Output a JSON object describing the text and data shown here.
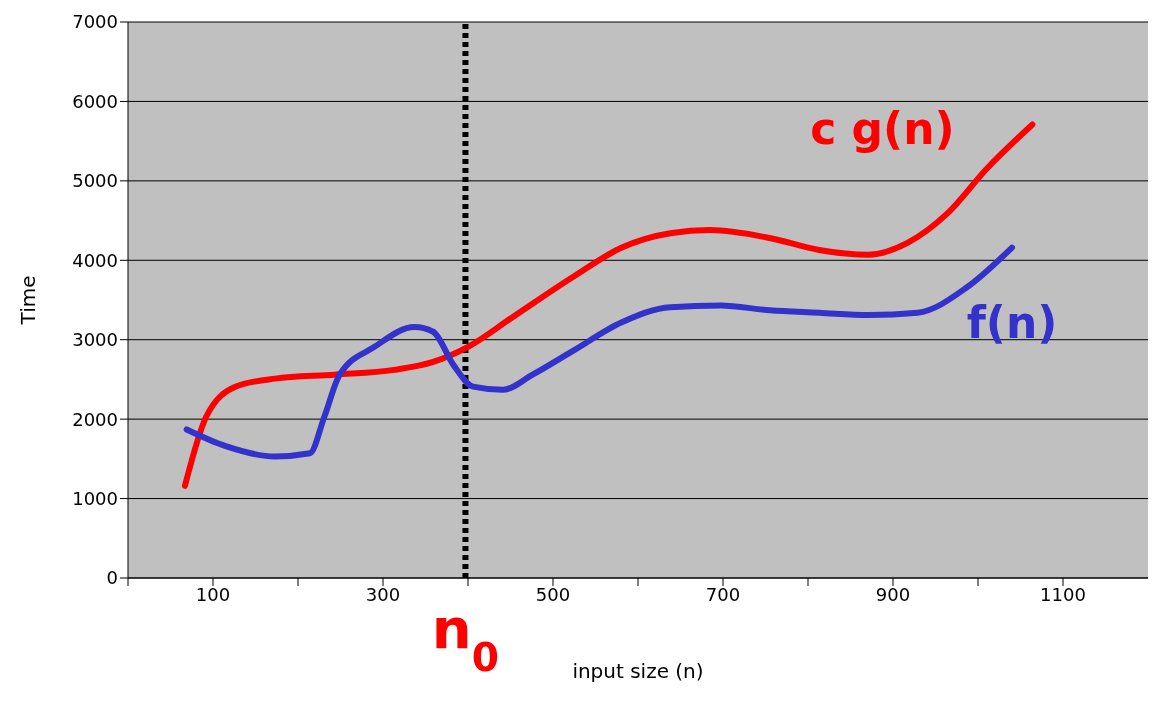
{
  "chart_data": {
    "type": "line",
    "xlabel": "input size (n)",
    "ylabel": "Time",
    "xlim": [
      0,
      1200
    ],
    "ylim": [
      0,
      7000
    ],
    "xticks": [
      {
        "value": 0,
        "label": null
      },
      100,
      {
        "value": 200,
        "label": null
      },
      300,
      {
        "value": 400,
        "label": null
      },
      500,
      {
        "value": 600,
        "label": null
      },
      700,
      {
        "value": 800,
        "label": null
      },
      900,
      {
        "value": 1000,
        "label": null
      },
      1100
    ],
    "yticks": [
      0,
      1000,
      2000,
      3000,
      4000,
      5000,
      6000,
      7000
    ],
    "grid": "y",
    "legend": false,
    "marker": "none",
    "line_style": "solid",
    "series": [
      {
        "name": "c g(n)",
        "color": "#ff0000",
        "x": [
          67,
          92,
          127,
          173,
          243,
          313,
          359,
          400,
          452,
          522,
          581,
          638,
          685,
          755,
          813,
          871,
          917,
          964,
          1010,
          1064
        ],
        "values": [
          1160,
          2030,
          2410,
          2510,
          2560,
          2620,
          2720,
          2910,
          3280,
          3780,
          4160,
          4340,
          4380,
          4280,
          4130,
          4070,
          4220,
          4590,
          5150,
          5710
        ]
      },
      {
        "name": "f(n)",
        "color": "#3333cc",
        "x": [
          69,
          115,
          173,
          214,
          231,
          249,
          290,
          337,
          359,
          383,
          406,
          441,
          476,
          522,
          581,
          638,
          697,
          755,
          813,
          871,
          929,
          987,
          1040
        ],
        "values": [
          1870,
          1660,
          1530,
          1570,
          2030,
          2560,
          2910,
          3160,
          3100,
          2680,
          2410,
          2370,
          2560,
          2850,
          3220,
          3410,
          3430,
          3370,
          3340,
          3310,
          3340,
          3660,
          4160
        ]
      }
    ],
    "ref_lines": [
      {
        "axis": "x",
        "value": 397,
        "label": "n$_{0}$",
        "color": "#000000",
        "line_style": "dotted"
      }
    ]
  }
}
